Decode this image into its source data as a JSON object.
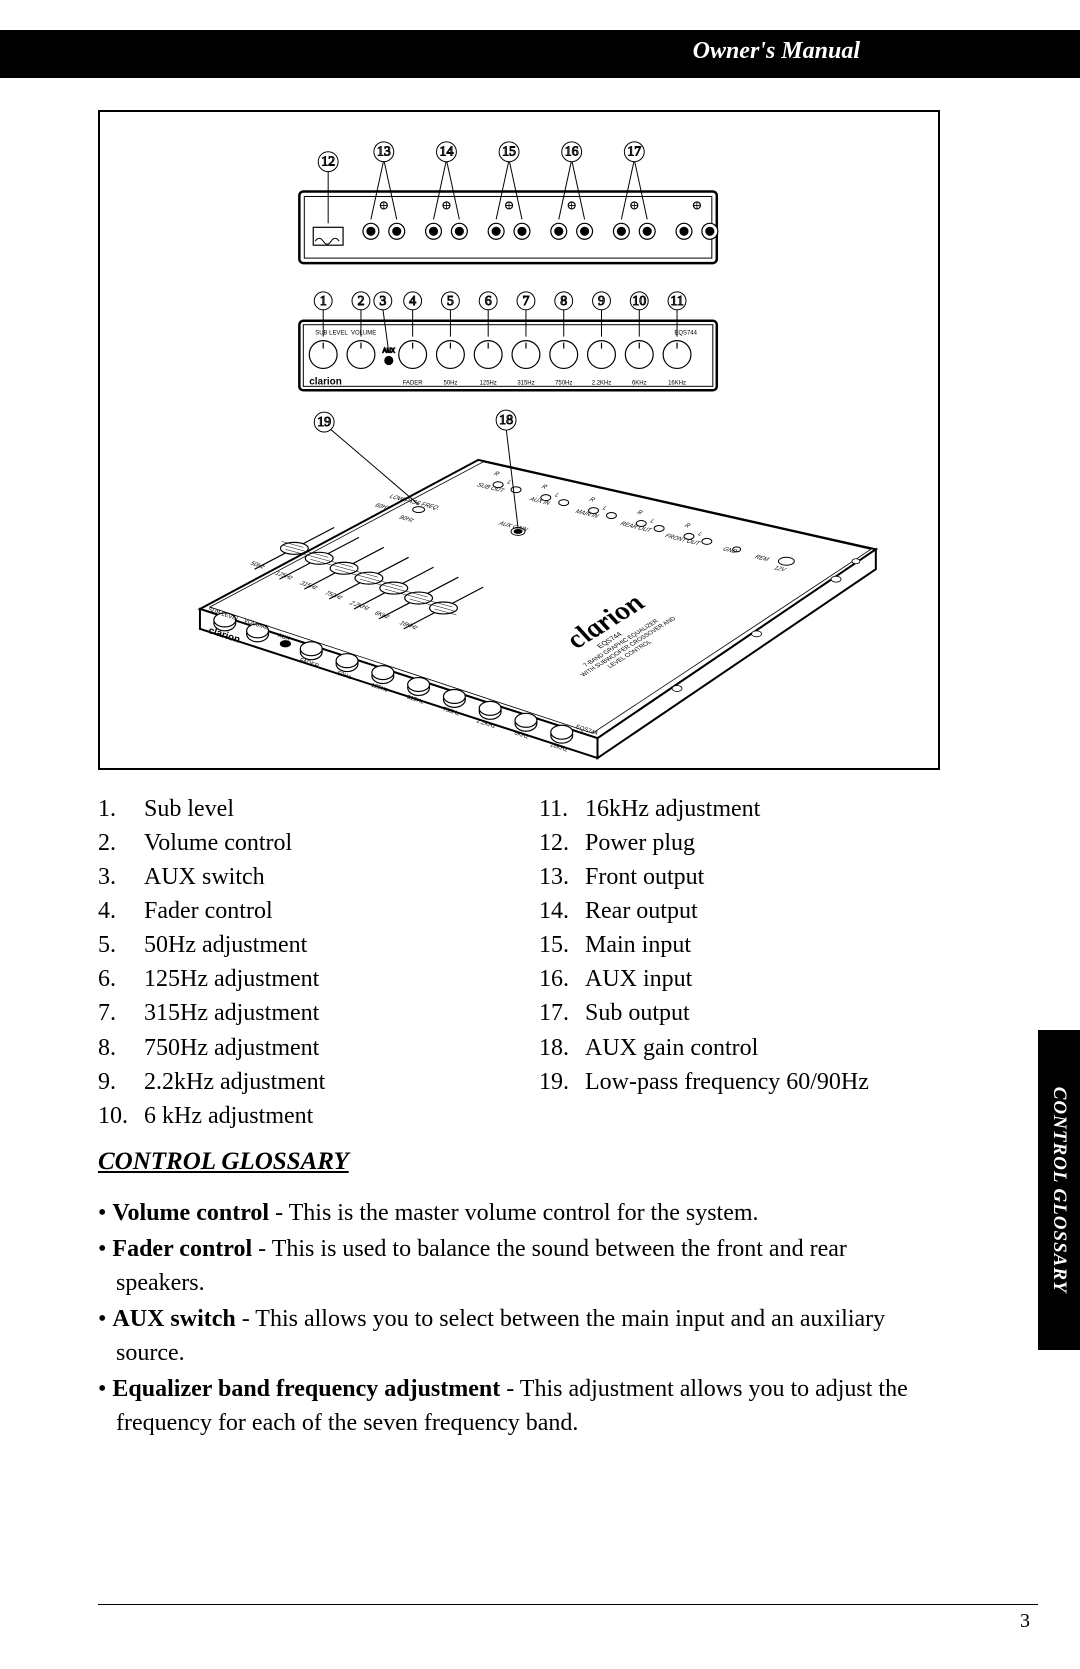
{
  "header": {
    "title": "Owner's Manual"
  },
  "page_number": "3",
  "side_tab": "CONTROL GLOSSARY",
  "section_heading": "CONTROL GLOSSARY",
  "diagram": {
    "brand": "clarion",
    "model": "EQS744",
    "model_sub": "7-BAND GRAPHIC EQUALIZER",
    "model_sub2": "WITH SUBWOOFER CROSSOVER AND",
    "model_sub3": "LEVEL CONTROL",
    "rear_callouts": [
      12,
      13,
      14,
      15,
      16,
      17
    ],
    "front_callouts": [
      1,
      2,
      3,
      4,
      5,
      6,
      7,
      8,
      9,
      10,
      11
    ],
    "top_callouts": [
      19,
      18
    ],
    "front_labels": [
      "SUB LEVEL",
      "VOLUME",
      "AUX",
      "FADER",
      "50Hz",
      "125Hz",
      "315Hz",
      "750Hz",
      "2.2KHz",
      "6KHz",
      "16KHz"
    ],
    "rear_port_pairs": 6,
    "top_labels": {
      "sub_out": "SUB OUT",
      "aux_in": "AUX IN",
      "main_in": "MAIN IN",
      "rear_out": "REAR OUT",
      "front_out": "FRONT OUT",
      "gnd": "GND",
      "rem": "REM",
      "v12": "12V",
      "lpf": "LOW PASS FREQ.",
      "lpf60": "60Hz",
      "lpf90": "90Hz",
      "aux_gain": "AUX GAIN",
      "R": "R",
      "L": "L"
    },
    "slider_labels": [
      "50Hz",
      "125Hz",
      "315Hz",
      "750Hz",
      "2.2KHz",
      "6KHz",
      "16KHz"
    ]
  },
  "controls": {
    "left": [
      {
        "n": "1.",
        "t": "Sub level"
      },
      {
        "n": "2.",
        "t": "Volume control"
      },
      {
        "n": "3.",
        "t": "AUX switch"
      },
      {
        "n": "4.",
        "t": "Fader control"
      },
      {
        "n": "5.",
        "t": "50Hz adjustment"
      },
      {
        "n": "6.",
        "t": "125Hz adjustment"
      },
      {
        "n": "7.",
        "t": "315Hz adjustment"
      },
      {
        "n": "8.",
        "t": "750Hz adjustment"
      },
      {
        "n": "9.",
        "t": "2.2kHz adjustment"
      },
      {
        "n": "10.",
        "t": "6 kHz adjustment"
      }
    ],
    "right": [
      {
        "n": "11.",
        "t": "16kHz adjustment"
      },
      {
        "n": "12.",
        "t": "Power plug"
      },
      {
        "n": "13.",
        "t": "Front output"
      },
      {
        "n": "14.",
        "t": "Rear output"
      },
      {
        "n": "15.",
        "t": "Main input"
      },
      {
        "n": "16.",
        "t": "AUX input"
      },
      {
        "n": "17.",
        "t": "Sub output"
      },
      {
        "n": "18.",
        "t": "AUX gain control"
      },
      {
        "n": "19.",
        "t": "Low-pass frequency 60/90Hz"
      }
    ]
  },
  "glossary": [
    {
      "term": "Volume control",
      "desc": " - This is the master volume control for the system."
    },
    {
      "term": "Fader control",
      "desc": " - This is used to balance the sound between the front and rear speakers."
    },
    {
      "term": "AUX switch",
      "desc": " - This allows you to select between the main input and an auxiliary source."
    },
    {
      "term": "Equalizer band frequency adjustment",
      "desc": " - This adjustment allows you to adjust the frequency for each of the seven frequency band."
    }
  ]
}
